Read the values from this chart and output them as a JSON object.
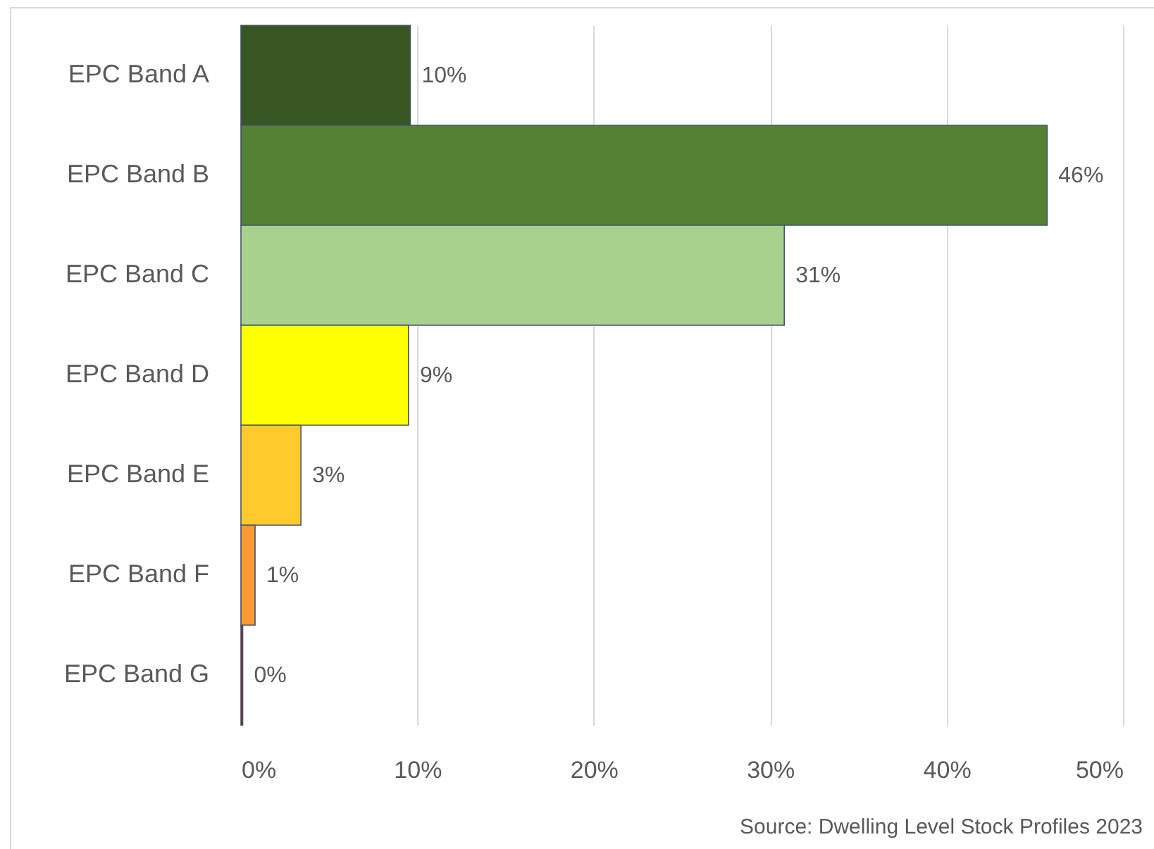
{
  "chart_data": {
    "type": "bar",
    "orientation": "horizontal",
    "categories": [
      "EPC Band A",
      "EPC Band B",
      "EPC Band C",
      "EPC Band D",
      "EPC Band E",
      "EPC Band F",
      "EPC Band G"
    ],
    "values": [
      9.6,
      45.7,
      30.8,
      9.5,
      3.4,
      0.8,
      0.1
    ],
    "colors": [
      "#375623",
      "#548235",
      "#a9d18e",
      "#ffff00",
      "#ffca2c",
      "#ff9933",
      "#c00000"
    ],
    "value_labels": [
      "10%",
      "46%",
      "31%",
      "9%",
      "3%",
      "1%",
      "0%"
    ],
    "xlim": [
      0,
      50
    ],
    "xticks": [
      {
        "value": 0,
        "label": "0%"
      },
      {
        "value": 10,
        "label": "10%"
      },
      {
        "value": 20,
        "label": "20%"
      },
      {
        "value": 30,
        "label": "30%"
      },
      {
        "value": 40,
        "label": "40%"
      },
      {
        "value": 50,
        "label": "50%"
      }
    ],
    "grid": "x",
    "annotations": [
      "Source: Dwelling Level Stock Profiles 2023"
    ]
  }
}
